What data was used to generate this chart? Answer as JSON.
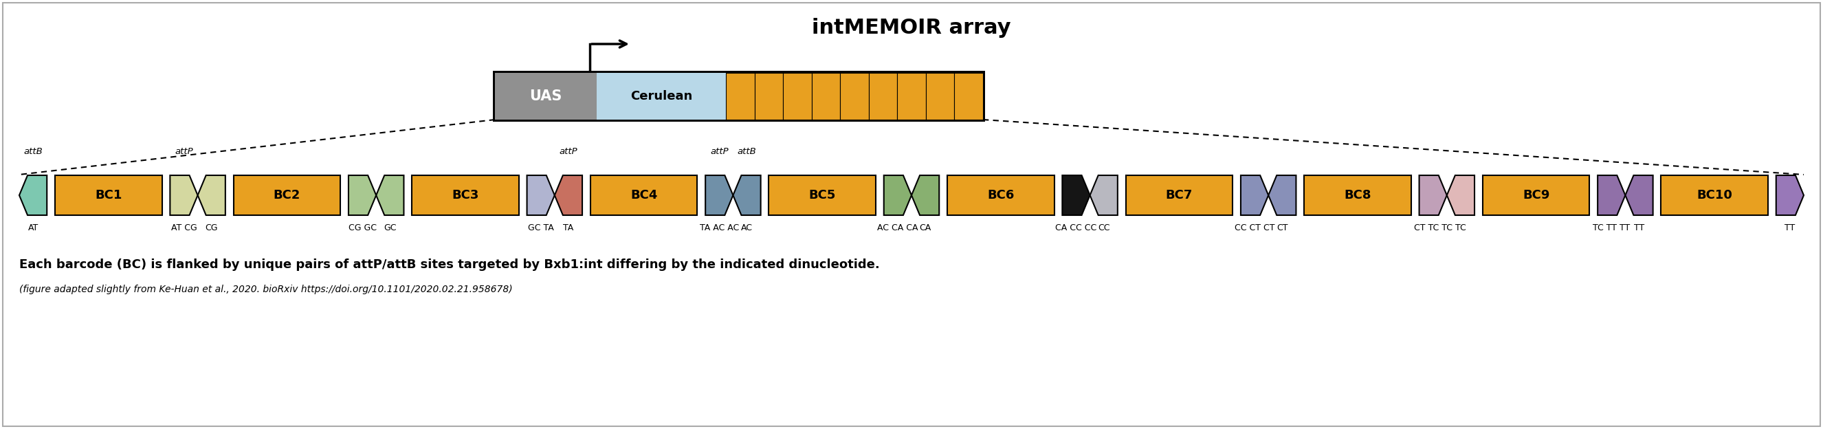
{
  "title": "intMEMOIR array",
  "title_fontsize": 18,
  "figure_bg": "white",
  "main_text": "Each barcode (BC) is flanked by unique pairs of attP/attB sites targeted by Bxb1:int differing by the indicated dinucleotide.",
  "sub_text": "(figure adapted slightly from Ke-Huan et al., 2020. bioRxiv https://doi.org/10.1101/2020.02.21.958678)",
  "orange": "#E8A020",
  "uas_color": "#909090",
  "cerulean_color": "#B8D8E8",
  "border_color": "#AAAAAA",
  "barcode_sites": [
    {
      "name": "BC1",
      "left_color": "#7DC8B0",
      "right_color": "#D4D8A0",
      "left_att": "attB",
      "right_att": "attP",
      "left_dn": "AT",
      "right_dn": "AT CG"
    },
    {
      "name": "BC2",
      "left_color": "#D4D8A0",
      "right_color": "#A8C890",
      "left_att": "",
      "right_att": "",
      "left_dn": "CG",
      "right_dn": "CG GC"
    },
    {
      "name": "BC3",
      "left_color": "#A8C890",
      "right_color": "#B0B4D0",
      "left_att": "",
      "right_att": "",
      "left_dn": "GC",
      "right_dn": "GC TA"
    },
    {
      "name": "BC4",
      "left_color": "#C87060",
      "right_color": "#7090A8",
      "left_att": "attP",
      "right_att": "attP",
      "left_dn": "TA",
      "right_dn": "TA AC AC"
    },
    {
      "name": "BC5",
      "left_color": "#7090A8",
      "right_color": "#88B070",
      "left_att": "attB",
      "right_att": "",
      "left_dn": "AC",
      "right_dn": "AC CA CA"
    },
    {
      "name": "BC6",
      "left_color": "#88B070",
      "right_color": "#151515",
      "left_att": "",
      "right_att": "",
      "left_dn": "CA",
      "right_dn": "CA CC CC"
    },
    {
      "name": "BC7",
      "left_color": "#B8B8C0",
      "right_color": "#8890B8",
      "left_att": "",
      "right_att": "",
      "left_dn": "CC",
      "right_dn": "CC CT CT"
    },
    {
      "name": "BC8",
      "left_color": "#8890B8",
      "right_color": "#C0A0B8",
      "left_att": "",
      "right_att": "",
      "left_dn": "CT",
      "right_dn": "CT TC TC"
    },
    {
      "name": "BC9",
      "left_color": "#E0B8B8",
      "right_color": "#9070A8",
      "left_att": "",
      "right_att": "",
      "left_dn": "TC",
      "right_dn": "TC TT TT"
    },
    {
      "name": "BC10",
      "left_color": "#9070A8",
      "right_color": "#9878B8",
      "left_att": "",
      "right_att": "",
      "left_dn": "TT",
      "right_dn": "TT"
    }
  ]
}
